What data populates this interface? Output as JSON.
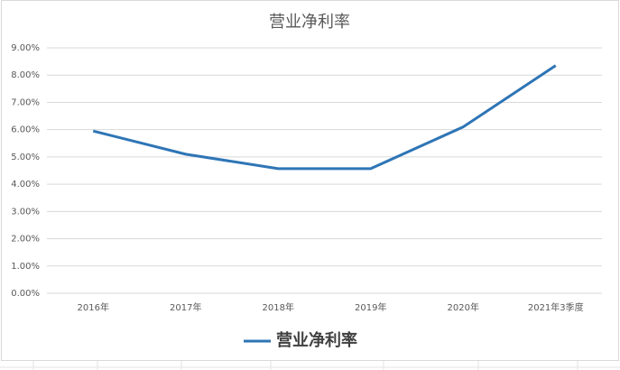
{
  "chart_data": {
    "type": "line",
    "title": "营业净利率",
    "categories": [
      "2016年",
      "2017年",
      "2018年",
      "2019年",
      "2020年",
      "2021年3季度"
    ],
    "series": [
      {
        "name": "营业净利率",
        "color": "#2e75b6",
        "values": [
          5.95,
          5.1,
          4.57,
          4.57,
          6.1,
          8.35
        ]
      }
    ],
    "ylim": [
      0,
      9
    ],
    "yticks": [
      {
        "value": 0,
        "label": "0.00%"
      },
      {
        "value": 1,
        "label": "1.00%"
      },
      {
        "value": 2,
        "label": "2.00%"
      },
      {
        "value": 3,
        "label": "3.00%"
      },
      {
        "value": 4,
        "label": "4.00%"
      },
      {
        "value": 5,
        "label": "5.00%"
      },
      {
        "value": 6,
        "label": "6.00%"
      },
      {
        "value": 7,
        "label": "7.00%"
      },
      {
        "value": 8,
        "label": "8.00%"
      },
      {
        "value": 9,
        "label": "9.00%"
      }
    ],
    "grid": true,
    "legend": "bottom"
  }
}
